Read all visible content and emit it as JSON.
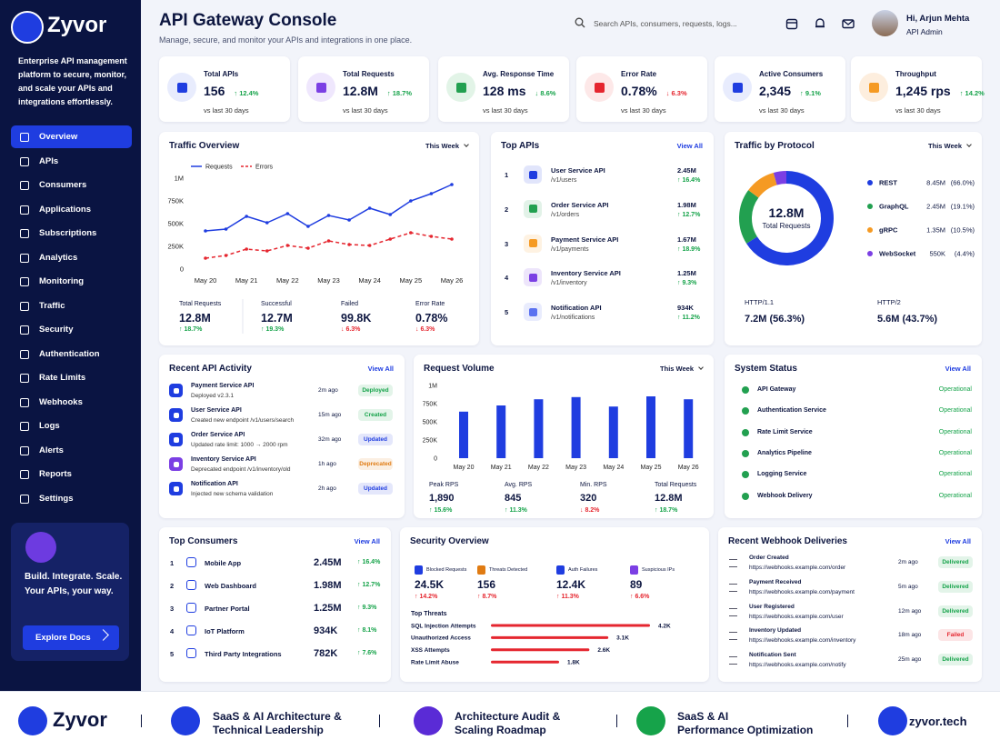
{
  "sidebar": {
    "brand": "Zyvor",
    "tagline": "Enterprise API management platform to secure, monitor, and scale your APIs and integrations effortlessly.",
    "nav": [
      "Overview",
      "APIs",
      "Consumers",
      "Applications",
      "Subscriptions",
      "Analytics",
      "Monitoring",
      "Traffic",
      "Security",
      "Authentication",
      "Rate Limits",
      "Webhooks",
      "Logs",
      "Alerts",
      "Reports",
      "Settings"
    ],
    "promo": {
      "lines": [
        "Build. Integrate. Scale.",
        "Your APIs, your way."
      ],
      "button": "Explore Docs"
    }
  },
  "header": {
    "title": "API Gateway Console",
    "subtitle": "Manage, secure, and monitor your APIs and integrations in one place.",
    "search": "Search APIs, consumers, requests, logs...",
    "user_name": "Hi, Arjun Mehta",
    "user_role": "API Admin"
  },
  "kpis": [
    {
      "label": "Total APIs",
      "value": "156",
      "change": "↑ 12.4%",
      "note": "vs last 30 days"
    },
    {
      "label": "Total Requests",
      "value": "12.8M",
      "change": "↑ 18.7%",
      "note": "vs last 30 days"
    },
    {
      "label": "Avg. Response Time",
      "value": "128 ms",
      "change": "↓ 8.6%",
      "note": "vs last 30 days"
    },
    {
      "label": "Error Rate",
      "value": "0.78%",
      "change": "↓ 6.3%",
      "note": "vs last 30 days",
      "color": "#e5262f"
    },
    {
      "label": "Active Consumers",
      "value": "2,345",
      "change": "↑ 9.1%",
      "note": "vs last 30 days"
    },
    {
      "label": "Throughput",
      "value": "1,245 rps",
      "change": "↑ 14.2%",
      "note": "vs last 30 days"
    }
  ],
  "traffic_overview": {
    "type": "line",
    "title": "Traffic Overview",
    "period": "This Week",
    "categories": [
      "May 20",
      null,
      "May 21",
      null,
      "May 22",
      null,
      "May 23",
      null,
      "May 24",
      null,
      "May 25",
      null,
      "May 26"
    ],
    "series": [
      {
        "name": "Requests",
        "color": "#1f3de0",
        "values": [
          420000,
          440000,
          580000,
          510000,
          610000,
          470000,
          590000,
          540000,
          670000,
          600000,
          750000,
          830000,
          930000
        ]
      },
      {
        "name": "Errors",
        "color": "#e5262f",
        "values": [
          120000,
          150000,
          220000,
          200000,
          260000,
          230000,
          310000,
          270000,
          260000,
          330000,
          400000,
          360000,
          330000
        ]
      }
    ],
    "ylim": [
      0,
      1000000
    ],
    "yticks": [
      0,
      {
        "value": 250000,
        "label": "250K"
      },
      {
        "value": 500000,
        "label": "500K"
      },
      {
        "value": 750000,
        "label": "750K"
      },
      {
        "value": 1000000,
        "label": "1M"
      }
    ],
    "summary": [
      {
        "label": "Total Requests",
        "value": "12.8M",
        "change": "↑ 18.7%"
      },
      {
        "label": "Successful",
        "value": "12.7M",
        "change": "↑ 19.3%"
      },
      {
        "label": "Failed",
        "value": "99.8K",
        "change": "↓ 6.3%",
        "color": "#e5262f"
      },
      {
        "label": "Error Rate",
        "value": "0.78%",
        "change": "↓ 6.3%",
        "color": "#e5262f"
      }
    ]
  },
  "top_apis": {
    "title": "Top APIs",
    "link": "View All",
    "rows": [
      {
        "rank": 1,
        "name": "User Service API",
        "path": "/v1/users",
        "value": "2.45M",
        "change": "↑ 16.4%"
      },
      {
        "rank": 2,
        "name": "Order Service API",
        "path": "/v1/orders",
        "value": "1.98M",
        "change": "↑ 12.7%"
      },
      {
        "rank": 3,
        "name": "Payment Service API",
        "path": "/v1/payments",
        "value": "1.67M",
        "change": "↑ 18.9%"
      },
      {
        "rank": 4,
        "name": "Inventory Service API",
        "path": "/v1/inventory",
        "value": "1.25M",
        "change": "↑ 9.3%"
      },
      {
        "rank": 5,
        "name": "Notification API",
        "path": "/v1/notifications",
        "value": "934K",
        "change": "↑ 11.2%"
      }
    ]
  },
  "traffic_by_protocol": {
    "type": "pie",
    "title": "Traffic by Protocol",
    "period": "This Week",
    "center_value": "12.8M",
    "center_label": "Total Requests",
    "categories": [
      "REST",
      "GraphQL",
      "gRPC",
      "WebSocket"
    ],
    "colors": [
      "#1f3de0",
      "#22a050",
      "#f59a23",
      "#7b3fe4"
    ],
    "values": [
      66.0,
      19.1,
      10.5,
      4.4
    ],
    "amounts": [
      "8.45M",
      "2.45M",
      "1.35M",
      "550K"
    ],
    "value_labels": [
      "(66.0%)",
      "(19.1%)",
      "(10.5%)",
      "(4.4%)"
    ],
    "http": [
      {
        "label": "HTTP/1.1",
        "value": "7.2M (56.3%)"
      },
      {
        "label": "HTTP/2",
        "value": "5.6M (43.7%)"
      }
    ]
  },
  "recent_activity": {
    "title": "Recent API Activity",
    "link": "View All",
    "rows": [
      {
        "name": "Payment Service API",
        "detail": "Deployed v2.3.1",
        "time": "2m ago",
        "status": "Deployed",
        "status_color": "#16a34a"
      },
      {
        "name": "User Service API",
        "detail": "Created new endpoint /v1/users/search",
        "time": "15m ago",
        "status": "Created",
        "status_color": "#16a34a"
      },
      {
        "name": "Order Service API",
        "detail": "Updated rate limit: 1000 → 2000 rpm",
        "time": "32m ago",
        "status": "Updated",
        "status_color": "#1f3de0"
      },
      {
        "name": "Inventory Service API",
        "detail": "Deprecated endpoint /v1/inventory/old",
        "time": "1h ago",
        "status": "Deprecated",
        "status_color": "#e07b12"
      },
      {
        "name": "Notification API",
        "detail": "Injected new schema validation",
        "time": "2h ago",
        "status": "Updated",
        "status_color": "#1f3de0"
      }
    ]
  },
  "request_volume": {
    "type": "bar",
    "title": "Request Volume",
    "period": "This Week",
    "categories": [
      "May 20",
      "May 21",
      "May 22",
      "May 23",
      "May 24",
      "May 25",
      "May 26"
    ],
    "values": [
      640000,
      725000,
      810000,
      840000,
      710000,
      850000,
      810000
    ],
    "color": "#1f3de0",
    "ylim": [
      0,
      1000000
    ],
    "yticks": [
      0,
      {
        "value": 250000,
        "label": "250K"
      },
      {
        "value": 500000,
        "label": "500K"
      },
      {
        "value": 750000,
        "label": "750K"
      },
      {
        "value": 1000000,
        "label": "1M"
      }
    ],
    "summary": [
      {
        "label": "Peak RPS",
        "value": "1,890",
        "change": "↑ 15.6%"
      },
      {
        "label": "Avg. RPS",
        "value": "845",
        "change": "↑ 11.3%"
      },
      {
        "label": "Min. RPS",
        "value": "320",
        "change": "↓ 8.2%",
        "color": "#e5262f"
      },
      {
        "label": "Total Requests",
        "value": "12.8M",
        "change": "↑ 18.7%"
      }
    ]
  },
  "system_status": {
    "title": "System Status",
    "link": "View All",
    "rows": [
      {
        "name": "API Gateway",
        "status": "Operational"
      },
      {
        "name": "Authentication Service",
        "status": "Operational"
      },
      {
        "name": "Rate Limit Service",
        "status": "Operational"
      },
      {
        "name": "Analytics Pipeline",
        "status": "Operational"
      },
      {
        "name": "Logging Service",
        "status": "Operational"
      },
      {
        "name": "Webhook Delivery",
        "status": "Operational"
      }
    ]
  },
  "top_consumers": {
    "title": "Top Consumers",
    "link": "View All",
    "rows": [
      {
        "rank": 1,
        "name": "Mobile App",
        "value": "2.45M",
        "change": "↑ 16.4%"
      },
      {
        "rank": 2,
        "name": "Web Dashboard",
        "value": "1.98M",
        "change": "↑ 12.7%"
      },
      {
        "rank": 3,
        "name": "Partner Portal",
        "value": "1.25M",
        "change": "↑ 9.3%"
      },
      {
        "rank": 4,
        "name": "IoT Platform",
        "value": "934K",
        "change": "↑ 8.1%"
      },
      {
        "rank": 5,
        "name": "Third Party Integrations",
        "value": "782K",
        "change": "↑ 7.6%"
      }
    ]
  },
  "security_overview": {
    "title": "Security Overview",
    "stats": [
      {
        "label": "Blocked Requests",
        "value": "24.5K",
        "change": "↑ 14.2%",
        "color": "#e5262f"
      },
      {
        "label": "Threats Detected",
        "value": "156",
        "change": "↑ 8.7%",
        "color": "#e5262f"
      },
      {
        "label": "Auth Failures",
        "value": "12.4K",
        "change": "↑ 11.3%",
        "color": "#e5262f"
      },
      {
        "label": "Suspicious IPs",
        "value": "89",
        "change": "↑ 6.6%",
        "color": "#e5262f"
      }
    ],
    "threats": {
      "type": "bar",
      "title": "Top Threats",
      "categories": [
        "SQL Injection Attempts",
        "Unauthorized Access",
        "XSS Attempts",
        "Rate Limit Abuse"
      ],
      "values": [
        4200,
        3100,
        2600,
        1800
      ],
      "value_labels": [
        "4.2K",
        "3.1K",
        "2.6K",
        "1.8K"
      ],
      "color": "#e5262f"
    }
  },
  "webhooks": {
    "title": "Recent Webhook Deliveries",
    "link": "View All",
    "rows": [
      {
        "event": "Order Created",
        "url": "https://webhooks.example.com/order",
        "time": "2m ago",
        "status": "Delivered",
        "status_color": "#16a34a"
      },
      {
        "event": "Payment Received",
        "url": "https://webhooks.example.com/payment",
        "time": "5m ago",
        "status": "Delivered",
        "status_color": "#16a34a"
      },
      {
        "event": "User Registered",
        "url": "https://webhooks.example.com/user",
        "time": "12m ago",
        "status": "Delivered",
        "status_color": "#16a34a"
      },
      {
        "event": "Inventory Updated",
        "url": "https://webhooks.example.com/inventory",
        "time": "18m ago",
        "status": "Failed",
        "status_color": "#e5262f"
      },
      {
        "event": "Notification Sent",
        "url": "https://webhooks.example.com/notify",
        "time": "25m ago",
        "status": "Delivered",
        "status_color": "#16a34a"
      }
    ]
  },
  "footer": {
    "brand": "Zyvor",
    "items": [
      {
        "lines": [
          "SaaS & AI Architecture &",
          "Technical Leadership"
        ]
      },
      {
        "lines": [
          "Architecture Audit &",
          "Scaling Roadmap"
        ]
      },
      {
        "lines": [
          "SaaS & AI",
          "Performance Optimization"
        ]
      }
    ],
    "site": "zyvor.tech"
  }
}
